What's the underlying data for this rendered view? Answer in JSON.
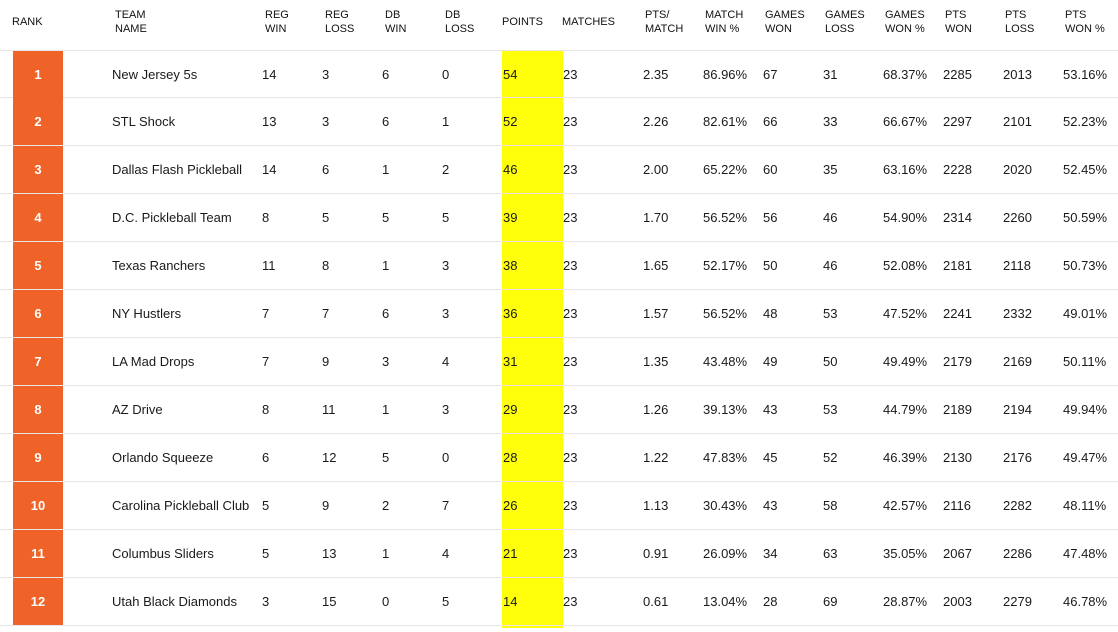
{
  "headers": {
    "rank": "RANK",
    "team": [
      "TEAM",
      "NAME"
    ],
    "reg_win": [
      "REG",
      "WIN"
    ],
    "reg_loss": [
      "REG",
      "LOSS"
    ],
    "db_win": [
      "DB",
      "WIN"
    ],
    "db_loss": [
      "DB",
      "LOSS"
    ],
    "points": "POINTS",
    "matches": "MATCHES",
    "pts_match": [
      "PTS/",
      "MATCH"
    ],
    "match_win_pct": [
      "MATCH",
      "WIN %"
    ],
    "games_won": [
      "GAMES",
      "WON"
    ],
    "games_loss": [
      "GAMES",
      "LOSS"
    ],
    "games_won_pct": [
      "GAMES",
      "WON %"
    ],
    "pts_won": [
      "PTS",
      "WON"
    ],
    "pts_loss": [
      "PTS",
      "LOSS"
    ],
    "pts_won_pct": [
      "PTS",
      "WON %"
    ]
  },
  "colors": {
    "rank_badge": "#ef6228",
    "points_highlight": "#ffff0a",
    "row_divider": "#e6e6e6"
  },
  "rows": [
    {
      "rank": "1",
      "team": "New Jersey 5s",
      "reg_win": "14",
      "reg_loss": "3",
      "db_win": "6",
      "db_loss": "0",
      "points": "54",
      "matches": "23",
      "pts_match": "2.35",
      "match_win_pct": "86.96%",
      "games_won": "67",
      "games_loss": "31",
      "games_won_pct": "68.37%",
      "pts_won": "2285",
      "pts_loss": "2013",
      "pts_won_pct": "53.16%"
    },
    {
      "rank": "2",
      "team": "STL Shock",
      "reg_win": "13",
      "reg_loss": "3",
      "db_win": "6",
      "db_loss": "1",
      "points": "52",
      "matches": "23",
      "pts_match": "2.26",
      "match_win_pct": "82.61%",
      "games_won": "66",
      "games_loss": "33",
      "games_won_pct": "66.67%",
      "pts_won": "2297",
      "pts_loss": "2101",
      "pts_won_pct": "52.23%"
    },
    {
      "rank": "3",
      "team": "Dallas Flash Pickleball",
      "reg_win": "14",
      "reg_loss": "6",
      "db_win": "1",
      "db_loss": "2",
      "points": "46",
      "matches": "23",
      "pts_match": "2.00",
      "match_win_pct": "65.22%",
      "games_won": "60",
      "games_loss": "35",
      "games_won_pct": "63.16%",
      "pts_won": "2228",
      "pts_loss": "2020",
      "pts_won_pct": "52.45%"
    },
    {
      "rank": "4",
      "team": "D.C. Pickleball Team",
      "reg_win": "8",
      "reg_loss": "5",
      "db_win": "5",
      "db_loss": "5",
      "points": "39",
      "matches": "23",
      "pts_match": "1.70",
      "match_win_pct": "56.52%",
      "games_won": "56",
      "games_loss": "46",
      "games_won_pct": "54.90%",
      "pts_won": "2314",
      "pts_loss": "2260",
      "pts_won_pct": "50.59%"
    },
    {
      "rank": "5",
      "team": "Texas Ranchers",
      "reg_win": "11",
      "reg_loss": "8",
      "db_win": "1",
      "db_loss": "3",
      "points": "38",
      "matches": "23",
      "pts_match": "1.65",
      "match_win_pct": "52.17%",
      "games_won": "50",
      "games_loss": "46",
      "games_won_pct": "52.08%",
      "pts_won": "2181",
      "pts_loss": "2118",
      "pts_won_pct": "50.73%"
    },
    {
      "rank": "6",
      "team": "NY Hustlers",
      "reg_win": "7",
      "reg_loss": "7",
      "db_win": "6",
      "db_loss": "3",
      "points": "36",
      "matches": "23",
      "pts_match": "1.57",
      "match_win_pct": "56.52%",
      "games_won": "48",
      "games_loss": "53",
      "games_won_pct": "47.52%",
      "pts_won": "2241",
      "pts_loss": "2332",
      "pts_won_pct": "49.01%"
    },
    {
      "rank": "7",
      "team": "LA Mad Drops",
      "reg_win": "7",
      "reg_loss": "9",
      "db_win": "3",
      "db_loss": "4",
      "points": "31",
      "matches": "23",
      "pts_match": "1.35",
      "match_win_pct": "43.48%",
      "games_won": "49",
      "games_loss": "50",
      "games_won_pct": "49.49%",
      "pts_won": "2179",
      "pts_loss": "2169",
      "pts_won_pct": "50.11%"
    },
    {
      "rank": "8",
      "team": "AZ Drive",
      "reg_win": "8",
      "reg_loss": "11",
      "db_win": "1",
      "db_loss": "3",
      "points": "29",
      "matches": "23",
      "pts_match": "1.26",
      "match_win_pct": "39.13%",
      "games_won": "43",
      "games_loss": "53",
      "games_won_pct": "44.79%",
      "pts_won": "2189",
      "pts_loss": "2194",
      "pts_won_pct": "49.94%"
    },
    {
      "rank": "9",
      "team": "Orlando Squeeze",
      "reg_win": "6",
      "reg_loss": "12",
      "db_win": "5",
      "db_loss": "0",
      "points": "28",
      "matches": "23",
      "pts_match": "1.22",
      "match_win_pct": "47.83%",
      "games_won": "45",
      "games_loss": "52",
      "games_won_pct": "46.39%",
      "pts_won": "2130",
      "pts_loss": "2176",
      "pts_won_pct": "49.47%"
    },
    {
      "rank": "10",
      "team": "Carolina Pickleball Club",
      "reg_win": "5",
      "reg_loss": "9",
      "db_win": "2",
      "db_loss": "7",
      "points": "26",
      "matches": "23",
      "pts_match": "1.13",
      "match_win_pct": "30.43%",
      "games_won": "43",
      "games_loss": "58",
      "games_won_pct": "42.57%",
      "pts_won": "2116",
      "pts_loss": "2282",
      "pts_won_pct": "48.11%"
    },
    {
      "rank": "11",
      "team": "Columbus Sliders",
      "reg_win": "5",
      "reg_loss": "13",
      "db_win": "1",
      "db_loss": "4",
      "points": "21",
      "matches": "23",
      "pts_match": "0.91",
      "match_win_pct": "26.09%",
      "games_won": "34",
      "games_loss": "63",
      "games_won_pct": "35.05%",
      "pts_won": "2067",
      "pts_loss": "2286",
      "pts_won_pct": "47.48%"
    },
    {
      "rank": "12",
      "team": "Utah Black Diamonds",
      "reg_win": "3",
      "reg_loss": "15",
      "db_win": "0",
      "db_loss": "5",
      "points": "14",
      "matches": "23",
      "pts_match": "0.61",
      "match_win_pct": "13.04%",
      "games_won": "28",
      "games_loss": "69",
      "games_won_pct": "28.87%",
      "pts_won": "2003",
      "pts_loss": "2279",
      "pts_won_pct": "46.78%"
    }
  ]
}
